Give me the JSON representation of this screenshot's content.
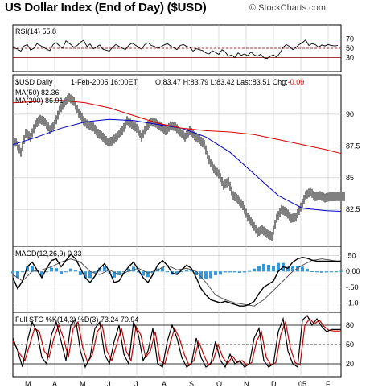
{
  "header": {
    "title": "US Dollar Index (End of Day) ($USD)",
    "credit": "© StockCharts.com"
  },
  "colors": {
    "price_bars": "#000000",
    "ma50": "#0000cc",
    "ma200": "#dd0000",
    "macd_histogram": "#3399dd",
    "sto_k": "#000000",
    "sto_d": "#cc0000",
    "negative_change": "#dd0000",
    "frame": "#000000",
    "grid": "#c8c8c8"
  },
  "chart_data": [
    {
      "type": "line",
      "panel": "rsi",
      "title": "RSI(14) 55.8",
      "indicator": "RSI(14)",
      "last": 55.8,
      "y_ticks": [
        30,
        50,
        70
      ],
      "ylim": [
        0,
        100
      ],
      "reference_lines": [
        30,
        50,
        70
      ],
      "series": [
        {
          "name": "RSI(14)",
          "x": [
            0,
            6,
            10,
            14,
            18,
            22,
            26,
            30,
            34,
            38,
            42,
            46,
            50,
            54,
            58,
            62,
            66,
            72,
            76,
            80,
            84,
            88,
            92,
            96,
            100,
            104,
            108,
            112,
            116,
            120,
            124,
            128,
            132,
            136,
            140,
            144,
            148,
            152,
            156,
            160,
            164,
            168,
            172,
            176,
            180,
            184,
            188,
            192,
            196,
            200,
            204,
            208,
            212,
            216,
            220,
            224,
            228,
            232,
            236,
            240,
            244,
            248,
            252,
            256,
            260,
            264,
            268,
            272,
            276,
            280,
            284,
            288,
            292,
            296,
            300,
            304,
            308,
            312,
            316,
            320,
            324,
            328,
            332,
            336,
            340,
            344,
            348,
            352,
            356,
            360,
            364,
            368,
            372,
            376,
            380,
            384,
            388,
            392,
            396,
            400,
            404
          ],
          "values": [
            52,
            48,
            44,
            55,
            58,
            46,
            50,
            60,
            56,
            52,
            48,
            45,
            58,
            62,
            55,
            50,
            66,
            58,
            52,
            56,
            63,
            67,
            54,
            59,
            49,
            53,
            57,
            48,
            46,
            44,
            52,
            58,
            54,
            50,
            47,
            56,
            61,
            57,
            52,
            48,
            58,
            62,
            56,
            54,
            50,
            53,
            57,
            60,
            55,
            51,
            47,
            56,
            58,
            54,
            52,
            44,
            49,
            47,
            45,
            40,
            38,
            45,
            41,
            37,
            47,
            42,
            33,
            36,
            30,
            40,
            35,
            38,
            34,
            42,
            36,
            33,
            37,
            30,
            28,
            33,
            36,
            31,
            40,
            52,
            58,
            54,
            47,
            52,
            58,
            62,
            68,
            56,
            60,
            58,
            52,
            57,
            55,
            58,
            56,
            55,
            55.8
          ]
        }
      ]
    },
    {
      "type": "line",
      "panel": "price",
      "title": "$USD Daily",
      "legend_date": "1-Feb-2005 16:00ET",
      "open": 83.47,
      "high": 83.79,
      "low": 83.42,
      "last": 83.51,
      "change": -0.09,
      "ylabel": "",
      "ylim": [
        79.6,
        93.1
      ],
      "y_ticks": [
        82.5,
        85.0,
        87.5,
        90.0
      ],
      "categories": [
        "M",
        "A",
        "M",
        "J",
        "J",
        "A",
        "S",
        "O",
        "N",
        "D",
        "05",
        "F"
      ],
      "series": [
        {
          "name": "$USD Daily (close)",
          "x": [
            0,
            6,
            12,
            18,
            24,
            30,
            36,
            42,
            48,
            54,
            60,
            66,
            72,
            78,
            84,
            90,
            96,
            102,
            108,
            114,
            120,
            126,
            132,
            138,
            144,
            150,
            156,
            162,
            168,
            174,
            180,
            186,
            192,
            198,
            204,
            210,
            216,
            222,
            228,
            234,
            240,
            246,
            252,
            258,
            264,
            270,
            276,
            282,
            288,
            294,
            300,
            306,
            312,
            318,
            324,
            330,
            336,
            342,
            348,
            354,
            360,
            366,
            372,
            378,
            384,
            390,
            396,
            402,
            408
          ],
          "values": [
            87.8,
            87.0,
            88.5,
            88.2,
            89.2,
            89.6,
            89.4,
            88.8,
            89.2,
            90.3,
            90.9,
            91.3,
            91.0,
            90.1,
            89.5,
            89.1,
            89.0,
            88.5,
            88.2,
            87.8,
            87.9,
            88.3,
            88.7,
            89.5,
            89.2,
            88.9,
            88.2,
            89.0,
            89.4,
            89.3,
            89.0,
            88.7,
            89.1,
            89.0,
            88.6,
            88.2,
            88.7,
            88.3,
            88.0,
            87.6,
            86.4,
            85.7,
            85.3,
            84.4,
            84.7,
            83.6,
            83.3,
            82.8,
            81.9,
            81.4,
            80.7,
            80.9,
            80.6,
            80.4,
            81.8,
            82.5,
            82.3,
            81.8,
            81.9,
            82.7,
            83.6,
            83.9,
            83.5,
            83.6,
            83.4,
            83.5,
            83.5,
            83.51,
            83.51
          ]
        },
        {
          "name": "MA(50) 82.36",
          "x": [
            0,
            30,
            60,
            90,
            120,
            150,
            180,
            210,
            240,
            270,
            300,
            330,
            360,
            390,
            408
          ],
          "values": [
            87.6,
            88.2,
            88.9,
            89.4,
            89.6,
            89.5,
            89.2,
            88.9,
            88.2,
            87.0,
            85.3,
            83.6,
            82.6,
            82.4,
            82.36
          ]
        },
        {
          "name": "MA(200) 86.91",
          "x": [
            0,
            60,
            90,
            120,
            150,
            180,
            210,
            240,
            270,
            300,
            330,
            360,
            390,
            408
          ],
          "values": [
            90.9,
            91.1,
            90.9,
            90.5,
            89.9,
            89.3,
            88.9,
            88.7,
            88.6,
            88.4,
            88.0,
            87.6,
            87.2,
            86.91
          ]
        }
      ]
    },
    {
      "type": "line",
      "panel": "macd",
      "title": "MACD(12,26,9) 0.33",
      "indicator": "MACD(12,26,9)",
      "last": 0.33,
      "ylim": [
        -1.3,
        0.8
      ],
      "y_ticks": [
        -1.0,
        -0.5,
        0.0,
        0.5
      ],
      "y_tick_labels": [
        "-1.0",
        "-.50",
        "0.00",
        ".50"
      ],
      "series": [
        {
          "name": "MACD",
          "x": [
            0,
            6,
            12,
            18,
            24,
            30,
            36,
            42,
            48,
            54,
            60,
            66,
            72,
            78,
            84,
            90,
            96,
            102,
            108,
            114,
            120,
            126,
            132,
            138,
            144,
            150,
            156,
            162,
            168,
            174,
            180,
            186,
            192,
            198,
            204,
            210,
            216,
            222,
            228,
            234,
            240,
            246,
            252,
            258,
            264,
            270,
            276,
            282,
            288,
            294,
            300,
            306,
            312,
            318,
            324,
            330,
            336,
            342,
            348,
            354,
            360,
            366,
            372,
            378,
            384,
            390,
            396,
            402,
            408
          ],
          "values": [
            -0.2,
            -0.55,
            -0.3,
            0.15,
            0.3,
            0.05,
            -0.2,
            0.1,
            0.35,
            0.4,
            0.15,
            0.35,
            0.55,
            0.4,
            0.1,
            -0.2,
            -0.35,
            -0.15,
            0.1,
            0.25,
            0.0,
            -0.35,
            -0.3,
            -0.05,
            0.15,
            0.3,
            0.05,
            -0.2,
            -0.35,
            -0.1,
            0.2,
            0.35,
            0.2,
            -0.05,
            -0.1,
            0.05,
            0.2,
            0.1,
            -0.2,
            -0.55,
            -0.75,
            -0.9,
            -0.95,
            -1.0,
            -0.95,
            -1.0,
            -1.05,
            -1.1,
            -1.1,
            -1.05,
            -0.95,
            -0.7,
            -0.5,
            -0.4,
            -0.3,
            0.0,
            0.15,
            0.1,
            0.3,
            0.4,
            0.45,
            0.42,
            0.36,
            0.33,
            0.33,
            0.33,
            0.33,
            0.33,
            0.33
          ]
        },
        {
          "name": "Signal",
          "x": [
            0,
            12,
            24,
            36,
            48,
            60,
            72,
            84,
            96,
            108,
            120,
            132,
            144,
            156,
            168,
            180,
            192,
            204,
            216,
            228,
            240,
            252,
            264,
            276,
            288,
            300,
            312,
            324,
            336,
            348,
            360,
            372,
            384,
            396,
            408
          ],
          "values": [
            -0.1,
            -0.3,
            0.0,
            0.05,
            0.15,
            0.3,
            0.4,
            0.3,
            0.0,
            -0.1,
            0.05,
            -0.1,
            0.0,
            0.1,
            -0.05,
            0.05,
            0.2,
            0.05,
            0.1,
            0.0,
            -0.35,
            -0.75,
            -0.9,
            -1.0,
            -1.05,
            -1.1,
            -0.9,
            -0.6,
            -0.3,
            0.0,
            0.2,
            0.35,
            0.4,
            0.36,
            0.3
          ]
        }
      ]
    },
    {
      "type": "line",
      "panel": "stochastic",
      "title": "Full STO %K(14,3) %D(3) 73.24 70.94",
      "indicator": "Full STO %K(14,3) %D(3)",
      "k_last": 73.24,
      "d_last": 70.94,
      "ylim": [
        0,
        100
      ],
      "y_ticks": [
        20,
        50,
        80
      ],
      "reference_lines": [
        20,
        50,
        80
      ],
      "series": [
        {
          "name": "%K(14,3)",
          "x": [
            0,
            6,
            12,
            18,
            24,
            30,
            36,
            42,
            48,
            54,
            60,
            66,
            72,
            78,
            84,
            90,
            96,
            102,
            108,
            114,
            120,
            126,
            132,
            138,
            144,
            150,
            156,
            162,
            168,
            174,
            180,
            186,
            192,
            198,
            204,
            210,
            216,
            222,
            228,
            234,
            240,
            246,
            252,
            258,
            264,
            270,
            276,
            282,
            288,
            294,
            300,
            306,
            312,
            318,
            324,
            330,
            336,
            342,
            348,
            354,
            360,
            366,
            372,
            378,
            384,
            390,
            396,
            402,
            408
          ],
          "values": [
            60,
            40,
            15,
            55,
            85,
            70,
            30,
            20,
            65,
            85,
            55,
            25,
            80,
            90,
            40,
            15,
            30,
            75,
            85,
            35,
            20,
            55,
            80,
            35,
            20,
            85,
            65,
            25,
            40,
            75,
            20,
            15,
            55,
            80,
            60,
            30,
            15,
            20,
            60,
            30,
            15,
            20,
            55,
            25,
            15,
            35,
            20,
            25,
            15,
            20,
            60,
            75,
            25,
            15,
            20,
            70,
            90,
            40,
            20,
            15,
            88,
            95,
            80,
            90,
            78,
            70,
            73.24,
            73.24,
            73.24
          ]
        },
        {
          "name": "%D(3)",
          "x": [
            0,
            9,
            15,
            21,
            27,
            33,
            39,
            45,
            51,
            57,
            63,
            69,
            75,
            81,
            87,
            93,
            99,
            105,
            111,
            117,
            123,
            129,
            135,
            141,
            147,
            153,
            159,
            165,
            171,
            177,
            183,
            189,
            195,
            201,
            207,
            213,
            219,
            225,
            231,
            237,
            243,
            249,
            255,
            261,
            267,
            273,
            279,
            285,
            291,
            297,
            303,
            309,
            315,
            321,
            327,
            333,
            339,
            345,
            351,
            357,
            363,
            369,
            375,
            381,
            387,
            393,
            399,
            405,
            408
          ],
          "values": [
            55,
            35,
            25,
            50,
            75,
            70,
            40,
            30,
            60,
            80,
            60,
            30,
            75,
            85,
            45,
            22,
            35,
            70,
            80,
            40,
            25,
            50,
            75,
            40,
            25,
            78,
            65,
            30,
            40,
            70,
            25,
            20,
            50,
            75,
            60,
            35,
            18,
            25,
            55,
            35,
            18,
            25,
            50,
            30,
            20,
            32,
            22,
            25,
            18,
            22,
            55,
            70,
            30,
            18,
            22,
            65,
            85,
            45,
            22,
            18,
            80,
            90,
            82,
            88,
            78,
            72,
            70.94,
            70.94,
            70.94
          ]
        }
      ]
    }
  ],
  "x_axis": {
    "labels": [
      "M",
      "A",
      "M",
      "J",
      "J",
      "A",
      "S",
      "O",
      "N",
      "D",
      "05",
      "F"
    ]
  }
}
